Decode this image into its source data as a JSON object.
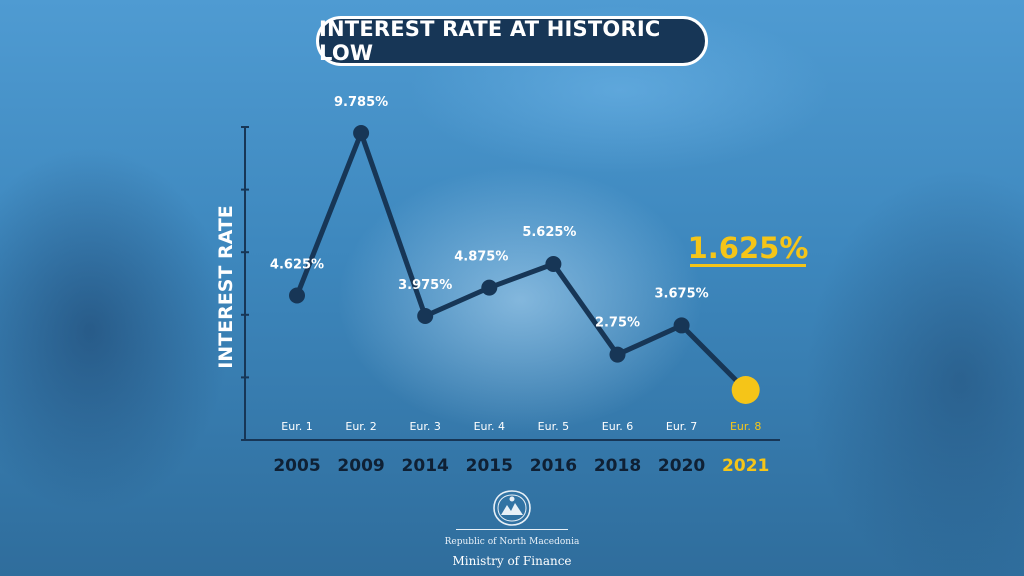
{
  "title": "INTEREST RATE AT HISTORIC LOW",
  "footer": {
    "country": "Republic of North Macedonia",
    "ministry": "Ministry of Finance"
  },
  "colors": {
    "line": "#173656",
    "highlight": "#f5c518",
    "title_bg": "#173656",
    "text": "#ffffff"
  },
  "chart_data": {
    "type": "line",
    "ylabel": "INTEREST RATE",
    "series_labels": [
      "Eur. 1",
      "Eur. 2",
      "Eur. 3",
      "Eur. 4",
      "Eur. 5",
      "Eur. 6",
      "Eur. 7",
      "Eur. 8"
    ],
    "categories": [
      "2005",
      "2009",
      "2014",
      "2015",
      "2016",
      "2018",
      "2020",
      "2021"
    ],
    "values": [
      4.625,
      9.785,
      3.975,
      4.875,
      5.625,
      2.75,
      3.675,
      1.625
    ],
    "value_labels": [
      "4.625%",
      "9.785%",
      "3.975%",
      "4.875%",
      "5.625%",
      "2.75%",
      "3.675%",
      "1.625%"
    ],
    "highlight_index": 7,
    "ylim": [
      0,
      10
    ],
    "grid": false
  }
}
